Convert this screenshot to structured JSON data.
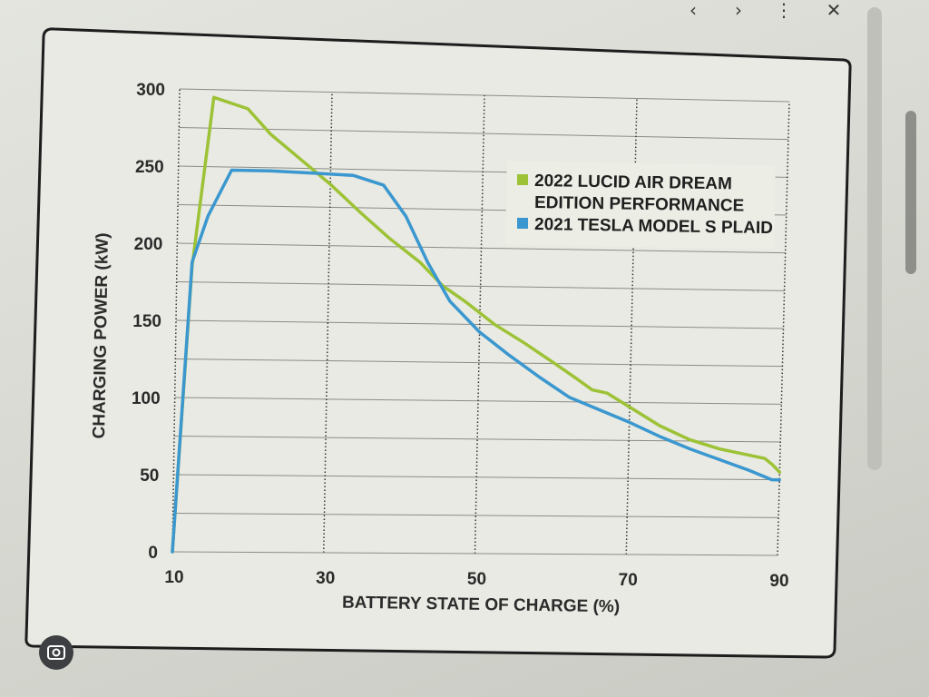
{
  "colors": {
    "lucid": "#9dc236",
    "tesla": "#3a97cf",
    "frame": "#1d1d1d",
    "grid": "#8b8c87"
  },
  "browser": {
    "back_glyph": "‹",
    "forward_glyph": "›",
    "more_glyph": "⋮",
    "close_glyph": "✕"
  },
  "chart_data": {
    "type": "line",
    "xlabel": "BATTERY STATE OF CHARGE (%)",
    "ylabel": "CHARGING POWER (kW)",
    "xlim": [
      10,
      90
    ],
    "ylim": [
      0,
      300
    ],
    "x_ticks": [
      10,
      30,
      50,
      70,
      90
    ],
    "y_ticks": [
      0,
      50,
      100,
      150,
      200,
      250,
      300
    ],
    "grid": true,
    "legend_position": "right-upper",
    "series": [
      {
        "name": "2022 LUCID AIR DREAM EDITION PERFORMANCE",
        "legend_lines": [
          "2022 LUCID AIR DREAM",
          "EDITION PERFORMANCE"
        ],
        "color_key": "lucid",
        "x": [
          10,
          12,
          14.5,
          19,
          22,
          26,
          30,
          34,
          38,
          42,
          45,
          48,
          52,
          56,
          60,
          63,
          65,
          67,
          70,
          74,
          78,
          82,
          86,
          88,
          89,
          90
        ],
        "y": [
          0,
          185,
          295,
          288,
          272,
          256,
          240,
          222,
          205,
          190,
          175,
          165,
          150,
          138,
          125,
          115,
          108,
          106,
          97,
          85,
          76,
          70,
          66,
          64,
          60,
          55
        ]
      },
      {
        "name": "2021 TESLA MODEL S PLAID",
        "legend_lines": [
          "2021 TESLA MODEL S PLAID"
        ],
        "color_key": "tesla",
        "x": [
          10,
          12,
          14,
          17,
          22,
          28,
          33,
          37,
          40,
          43,
          46,
          50,
          54,
          58,
          62,
          66,
          70,
          74,
          78,
          82,
          86,
          89,
          90
        ],
        "y": [
          0,
          188,
          218,
          248,
          248,
          247,
          246,
          240,
          220,
          190,
          165,
          145,
          130,
          116,
          103,
          95,
          87,
          78,
          70,
          63,
          56,
          50,
          50
        ]
      }
    ]
  }
}
